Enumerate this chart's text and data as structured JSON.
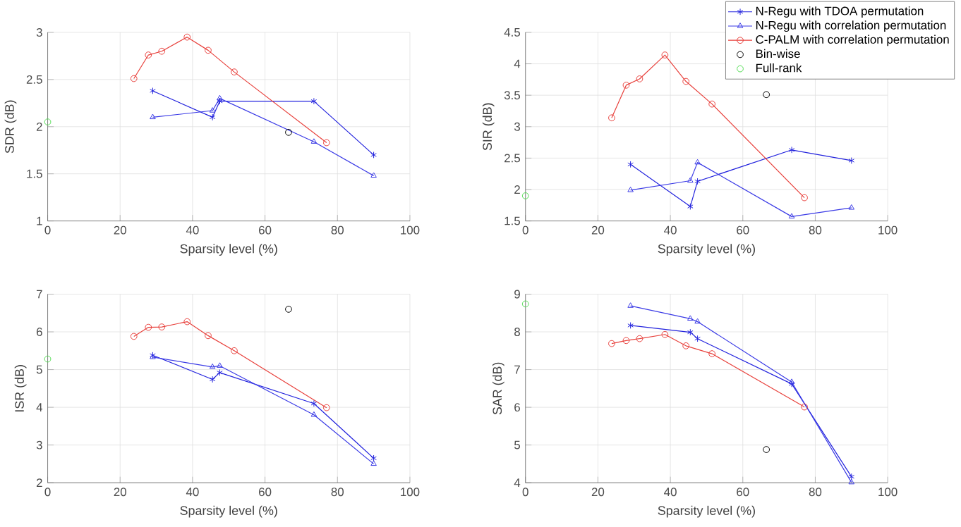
{
  "chart_data": [
    {
      "type": "line",
      "xlabel": "Sparsity level (%)",
      "ylabel": "SDR (dB)",
      "xlim": [
        0,
        100
      ],
      "xticks": [
        0,
        20,
        40,
        60,
        80,
        100
      ],
      "ylim": [
        1,
        3
      ],
      "yticks": [
        1,
        1.5,
        2,
        2.5,
        3
      ],
      "grid": true,
      "series": [
        {
          "marker": "cross",
          "color": "#2222dd",
          "x": [
            29,
            45.5,
            47.5,
            73.5,
            90
          ],
          "values": [
            2.38,
            2.1,
            2.27,
            2.27,
            1.7
          ]
        },
        {
          "marker": "triangle",
          "color": "#3b3be6",
          "x": [
            29,
            45.5,
            47.5,
            73.5,
            90
          ],
          "values": [
            2.1,
            2.17,
            2.3,
            1.84,
            1.48
          ]
        },
        {
          "marker": "circle",
          "color": "#e8413c",
          "x": [
            23.8,
            27.8,
            31.5,
            38.5,
            44.3,
            51.5,
            77
          ],
          "values": [
            2.51,
            2.76,
            2.8,
            2.95,
            2.81,
            2.58,
            1.83
          ]
        },
        {
          "type": "scatter",
          "marker": "circle",
          "color": "#000000",
          "x": [
            66.5
          ],
          "values": [
            1.94
          ]
        },
        {
          "type": "scatter",
          "marker": "circle",
          "color": "#55dd55",
          "x": [
            0
          ],
          "values": [
            2.05
          ]
        }
      ]
    },
    {
      "type": "line",
      "xlabel": "Sparsity level (%)",
      "ylabel": "SIR (dB)",
      "xlim": [
        0,
        100
      ],
      "xticks": [
        0,
        20,
        40,
        60,
        80,
        100
      ],
      "ylim": [
        1.5,
        4.5
      ],
      "yticks": [
        1.5,
        2,
        2.5,
        3,
        3.5,
        4,
        4.5
      ],
      "grid": true,
      "legend": "top right",
      "series": [
        {
          "name": "N-Regu with TDOA permutation",
          "marker": "cross",
          "color": "#2222dd",
          "x": [
            29,
            45.5,
            47.5,
            73.5,
            90
          ],
          "values": [
            2.4,
            1.73,
            2.13,
            2.63,
            2.46
          ]
        },
        {
          "name": "N-Regu with correlation permutation",
          "marker": "triangle",
          "color": "#3b3be6",
          "x": [
            29,
            45.5,
            47.5,
            73.5,
            90
          ],
          "values": [
            1.99,
            2.14,
            2.43,
            1.57,
            1.71
          ]
        },
        {
          "name": "C-PALM with correlation permutation",
          "marker": "circle",
          "color": "#e8413c",
          "x": [
            23.8,
            27.8,
            31.5,
            38.5,
            44.3,
            51.5,
            77
          ],
          "values": [
            3.14,
            3.66,
            3.76,
            4.14,
            3.72,
            3.36,
            1.87
          ]
        },
        {
          "name": "Bin-wise",
          "type": "scatter",
          "marker": "circle",
          "color": "#000000",
          "x": [
            66.5
          ],
          "values": [
            3.51
          ]
        },
        {
          "name": "Full-rank",
          "type": "scatter",
          "marker": "circle",
          "color": "#55dd55",
          "x": [
            0
          ],
          "values": [
            1.9
          ]
        }
      ]
    },
    {
      "type": "line",
      "xlabel": "Sparsity level (%)",
      "ylabel": "ISR (dB)",
      "xlim": [
        0,
        100
      ],
      "xticks": [
        0,
        20,
        40,
        60,
        80,
        100
      ],
      "ylim": [
        2,
        7
      ],
      "yticks": [
        2,
        3,
        4,
        5,
        6,
        7
      ],
      "grid": true,
      "series": [
        {
          "marker": "cross",
          "color": "#2222dd",
          "x": [
            29,
            45.5,
            47.5,
            73.5,
            90
          ],
          "values": [
            5.38,
            4.74,
            4.92,
            4.1,
            2.65
          ]
        },
        {
          "marker": "triangle",
          "color": "#3b3be6",
          "x": [
            29,
            45.5,
            47.5,
            73.5,
            90
          ],
          "values": [
            5.33,
            5.07,
            5.1,
            3.8,
            2.5
          ]
        },
        {
          "marker": "circle",
          "color": "#e8413c",
          "x": [
            23.8,
            27.8,
            31.5,
            38.5,
            44.3,
            51.5,
            77
          ],
          "values": [
            5.88,
            6.12,
            6.13,
            6.27,
            5.9,
            5.5,
            3.99
          ]
        },
        {
          "type": "scatter",
          "marker": "circle",
          "color": "#000000",
          "x": [
            66.5
          ],
          "values": [
            6.6
          ]
        },
        {
          "type": "scatter",
          "marker": "circle",
          "color": "#55dd55",
          "x": [
            0
          ],
          "values": [
            5.28
          ]
        }
      ]
    },
    {
      "type": "line",
      "xlabel": "Sparsity level (%)",
      "ylabel": "SAR (dB)",
      "xlim": [
        0,
        100
      ],
      "xticks": [
        0,
        20,
        40,
        60,
        80,
        100
      ],
      "ylim": [
        4,
        9
      ],
      "yticks": [
        4,
        5,
        6,
        7,
        8,
        9
      ],
      "grid": true,
      "series": [
        {
          "marker": "cross",
          "color": "#2222dd",
          "x": [
            29,
            45.5,
            47.5,
            73.5,
            90
          ],
          "values": [
            8.17,
            7.99,
            7.82,
            6.62,
            4.16
          ]
        },
        {
          "marker": "triangle",
          "color": "#3b3be6",
          "x": [
            29,
            45.5,
            47.5,
            73.5,
            90
          ],
          "values": [
            8.69,
            8.35,
            8.27,
            6.67,
            4.01
          ]
        },
        {
          "marker": "circle",
          "color": "#e8413c",
          "x": [
            23.8,
            27.8,
            31.5,
            38.5,
            44.3,
            51.5,
            77
          ],
          "values": [
            7.69,
            7.77,
            7.82,
            7.93,
            7.63,
            7.42,
            6.01
          ]
        },
        {
          "type": "scatter",
          "marker": "circle",
          "color": "#000000",
          "x": [
            66.5
          ],
          "values": [
            4.88
          ]
        },
        {
          "type": "scatter",
          "marker": "circle",
          "color": "#55dd55",
          "x": [
            0
          ],
          "values": [
            8.74
          ]
        }
      ]
    }
  ]
}
